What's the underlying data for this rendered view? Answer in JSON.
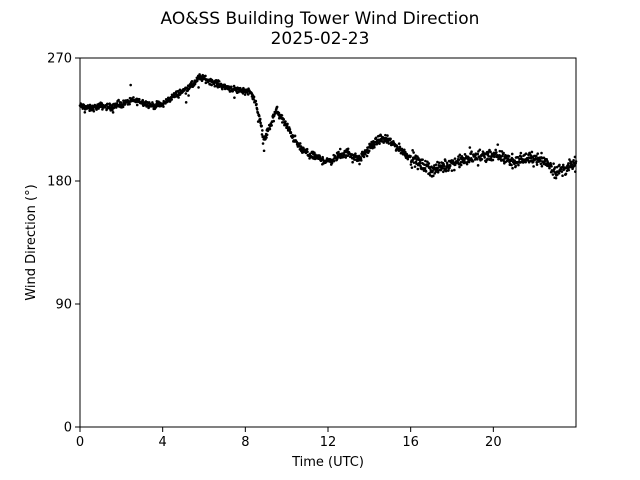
{
  "chart_data": {
    "type": "scatter",
    "title": "AO&SS Building Tower Wind Direction",
    "subtitle": "2025-02-23",
    "xlabel": "Time (UTC)",
    "ylabel": "Wind Direction (°)",
    "xlim": [
      0,
      24
    ],
    "ylim": [
      0,
      270
    ],
    "xticks": [
      0,
      4,
      8,
      12,
      16,
      20
    ],
    "yticks": [
      0,
      90,
      180,
      270
    ],
    "grid": false,
    "marker_color": "#000000",
    "trend": {
      "x": [
        0,
        0.5,
        1.0,
        1.5,
        2.0,
        2.5,
        3.0,
        3.5,
        4.0,
        4.5,
        5.0,
        5.5,
        5.8,
        6.0,
        6.5,
        7.0,
        7.5,
        8.0,
        8.3,
        8.6,
        8.9,
        9.2,
        9.5,
        9.8,
        10.2,
        10.6,
        11.0,
        11.5,
        12.0,
        12.5,
        13.0,
        13.5,
        14.0,
        14.5,
        15.0,
        15.5,
        16.0,
        16.5,
        17.0,
        17.5,
        18.0,
        18.5,
        19.0,
        19.5,
        20.0,
        20.5,
        21.0,
        21.5,
        22.0,
        22.5,
        23.0,
        23.5,
        24.0
      ],
      "y": [
        235,
        233,
        235,
        234,
        236,
        239,
        238,
        235,
        236,
        242,
        246,
        251,
        256,
        255,
        252,
        249,
        247,
        246,
        245,
        232,
        210,
        220,
        232,
        225,
        215,
        205,
        200,
        197,
        194,
        198,
        201,
        195,
        204,
        211,
        209,
        203,
        197,
        192,
        188,
        190,
        193,
        195,
        197,
        199,
        199,
        197,
        194,
        196,
        197,
        195,
        187,
        189,
        193
      ]
    }
  }
}
